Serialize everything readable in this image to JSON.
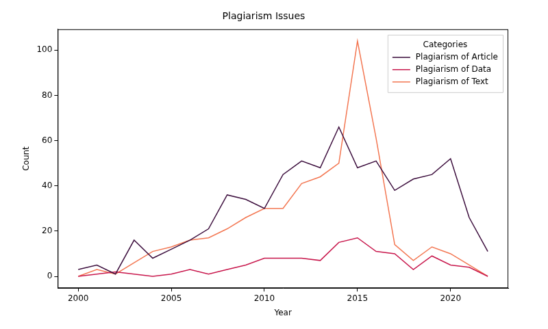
{
  "chart_data": {
    "type": "line",
    "title": "Plagiarism Issues",
    "x_label": "Year",
    "y_label": "Count",
    "x": [
      2000,
      2001,
      2002,
      2003,
      2004,
      2005,
      2006,
      2007,
      2008,
      2009,
      2010,
      2011,
      2012,
      2013,
      2014,
      2015,
      2016,
      2017,
      2018,
      2019,
      2020,
      2021,
      2022
    ],
    "series": [
      {
        "name": "Plagiarism of Article",
        "color": "#3d0f3e",
        "values": [
          3,
          5,
          1,
          16,
          8,
          12,
          16,
          21,
          36,
          34,
          30,
          45,
          51,
          48,
          66,
          48,
          51,
          38,
          43,
          45,
          52,
          26,
          11
        ]
      },
      {
        "name": "Plagiarism of Data",
        "color": "#c8174c",
        "values": [
          0,
          1,
          2,
          1,
          0,
          1,
          3,
          1,
          3,
          5,
          8,
          8,
          8,
          7,
          15,
          17,
          11,
          10,
          3,
          9,
          5,
          4,
          0
        ]
      },
      {
        "name": "Plagiarism of Text",
        "color": "#f37651",
        "values": [
          0,
          3,
          1,
          6,
          11,
          13,
          16,
          17,
          21,
          26,
          30,
          30,
          41,
          44,
          50,
          104,
          61,
          14,
          7,
          13,
          10,
          5,
          0
        ]
      }
    ],
    "xlim": [
      1998.9,
      2023.1
    ],
    "xticks": [
      2000,
      2005,
      2010,
      2015,
      2020
    ],
    "ylim": [
      -5.2,
      109.2
    ],
    "yticks": [
      0,
      20,
      40,
      60,
      80,
      100
    ],
    "grid": false,
    "legend": "upper right",
    "legend_title": "Categories"
  }
}
